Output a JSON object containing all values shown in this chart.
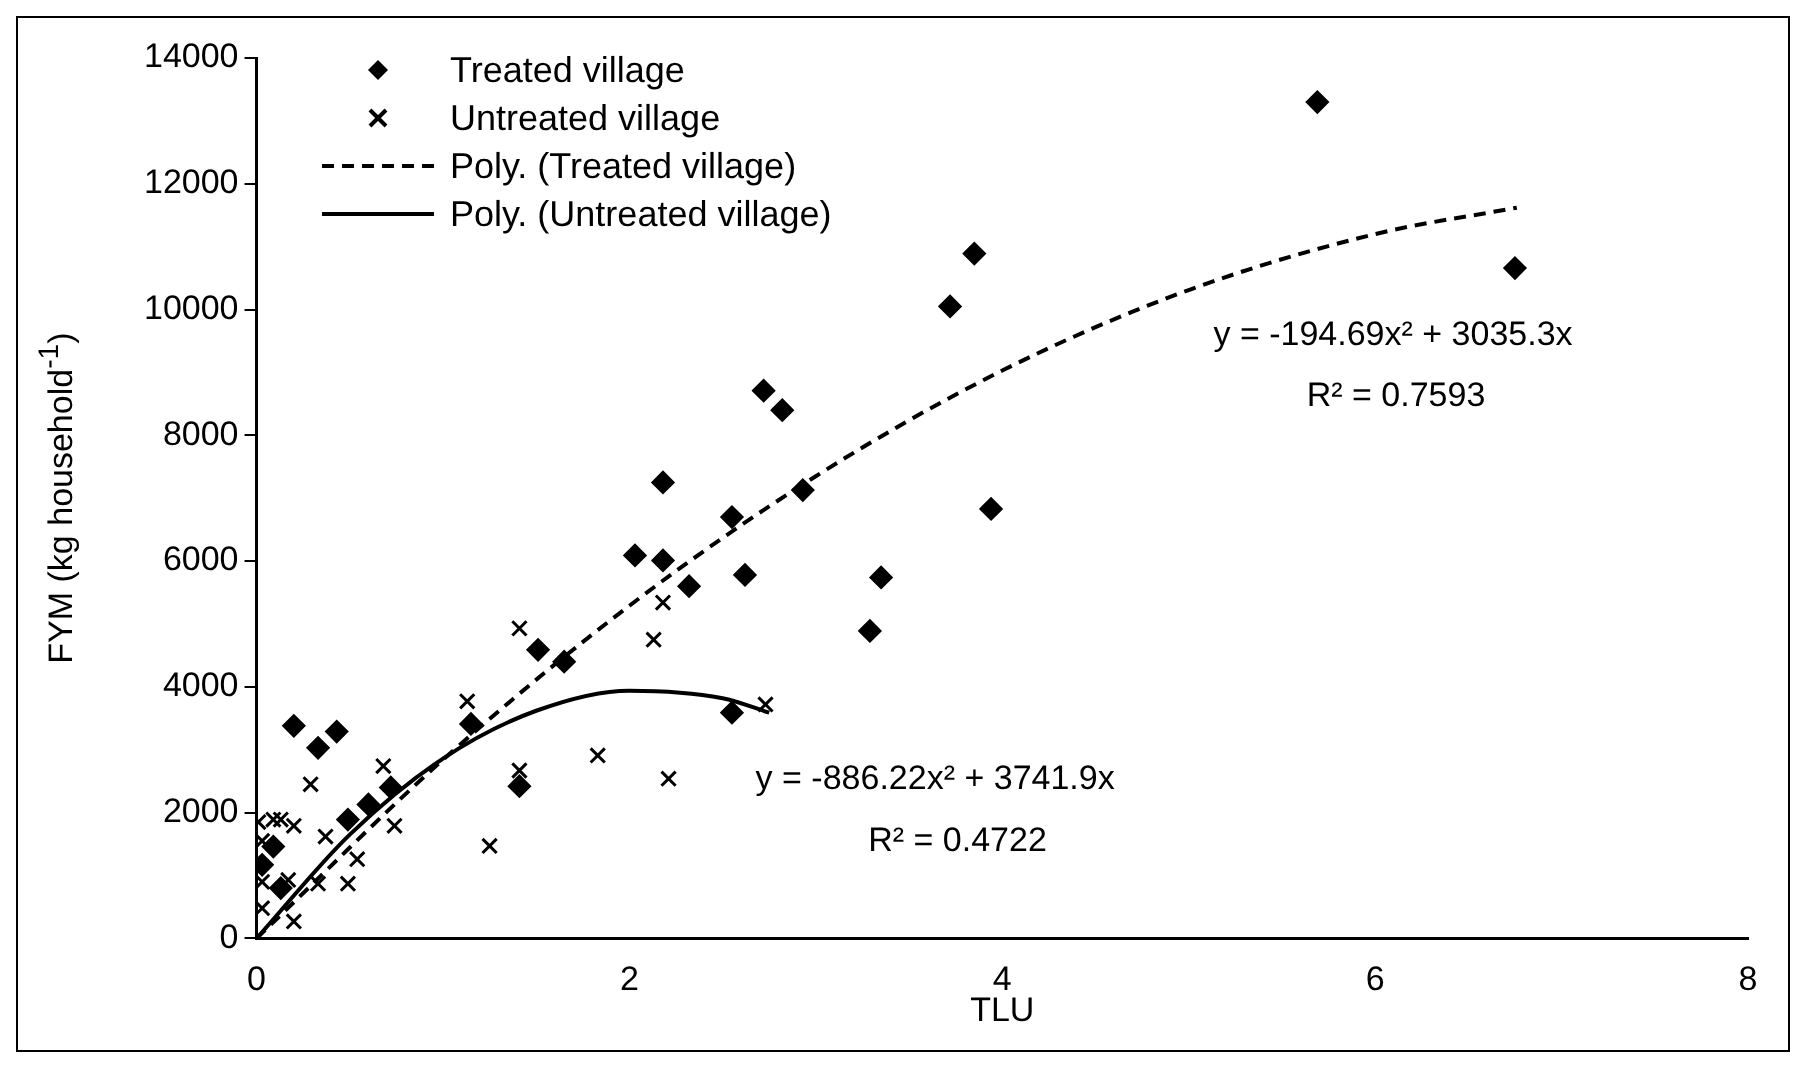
{
  "chart_data": {
    "type": "scatter",
    "xlabel": "TLU",
    "ylabel": "FYM (kg household$^{-1}$)",
    "xlim": [
      0,
      8
    ],
    "xticks": [
      0,
      2,
      4,
      6,
      8
    ],
    "ylim": [
      0,
      14000
    ],
    "yticks": [
      0,
      2000,
      4000,
      6000,
      8000,
      10000,
      12000,
      14000
    ],
    "grid": false,
    "legend": "top left",
    "series": [
      {
        "name": "Treated village",
        "type": "scatter",
        "marker": "diamond",
        "color": "#000000",
        "x": [
          0.03,
          0.09,
          0.13,
          0.2,
          0.33,
          0.43,
          0.49,
          0.6,
          0.72,
          1.15,
          1.41,
          1.51,
          1.65,
          2.03,
          2.18,
          2.18,
          2.32,
          2.55,
          2.55,
          2.62,
          2.72,
          2.82,
          2.93,
          3.29,
          3.35,
          3.72,
          3.85,
          3.94,
          5.69,
          6.75
        ],
        "values": [
          1170,
          1460,
          800,
          3380,
          3030,
          3290,
          1890,
          2130,
          2400,
          3410,
          2420,
          4590,
          4400,
          6090,
          7250,
          6010,
          5600,
          6700,
          3590,
          5780,
          8710,
          8400,
          7130,
          4890,
          5740,
          10050,
          10890,
          6830,
          13300,
          10660
        ]
      },
      {
        "name": "Untreated village",
        "type": "scatter",
        "marker": "cross",
        "color": "#000000",
        "x": [
          0.01,
          0.03,
          0.03,
          0.03,
          0.09,
          0.13,
          0.17,
          0.2,
          0.2,
          0.29,
          0.33,
          0.37,
          0.49,
          0.54,
          0.68,
          0.72,
          0.74,
          1.13,
          1.25,
          1.41,
          1.41,
          1.83,
          2.13,
          2.18,
          2.21,
          2.73
        ],
        "values": [
          1850,
          1550,
          900,
          480,
          1890,
          1890,
          930,
          1790,
          270,
          2450,
          870,
          1620,
          870,
          1260,
          2740,
          null,
          1790,
          3770,
          1470,
          2670,
          4930,
          2910,
          4750,
          5340,
          2540,
          3720
        ]
      },
      {
        "name": "Poly. (Treated village)",
        "type": "line",
        "marker": "none",
        "line_style": "dashed",
        "color": "#000000",
        "x": [
          0,
          1,
          2,
          3,
          4,
          5,
          6,
          6.76
        ],
        "values": [
          0,
          2840,
          5290,
          7350,
          9030,
          10310,
          11200,
          11620
        ]
      },
      {
        "name": "Poly. (Untreated village)",
        "type": "line",
        "marker": "none",
        "line_style": "solid",
        "color": "#000000",
        "x": [
          0,
          0.5,
          1,
          1.5,
          2,
          2.5,
          2.75
        ],
        "values": [
          0,
          1650,
          2860,
          3620,
          3940,
          3820,
          3590
        ]
      }
    ],
    "annotations": [
      "y = -194.69x² + 3035.3x",
      "R² = 0.7593",
      "y = -886.22x² + 3741.9x",
      "R² = 0.4722"
    ]
  }
}
